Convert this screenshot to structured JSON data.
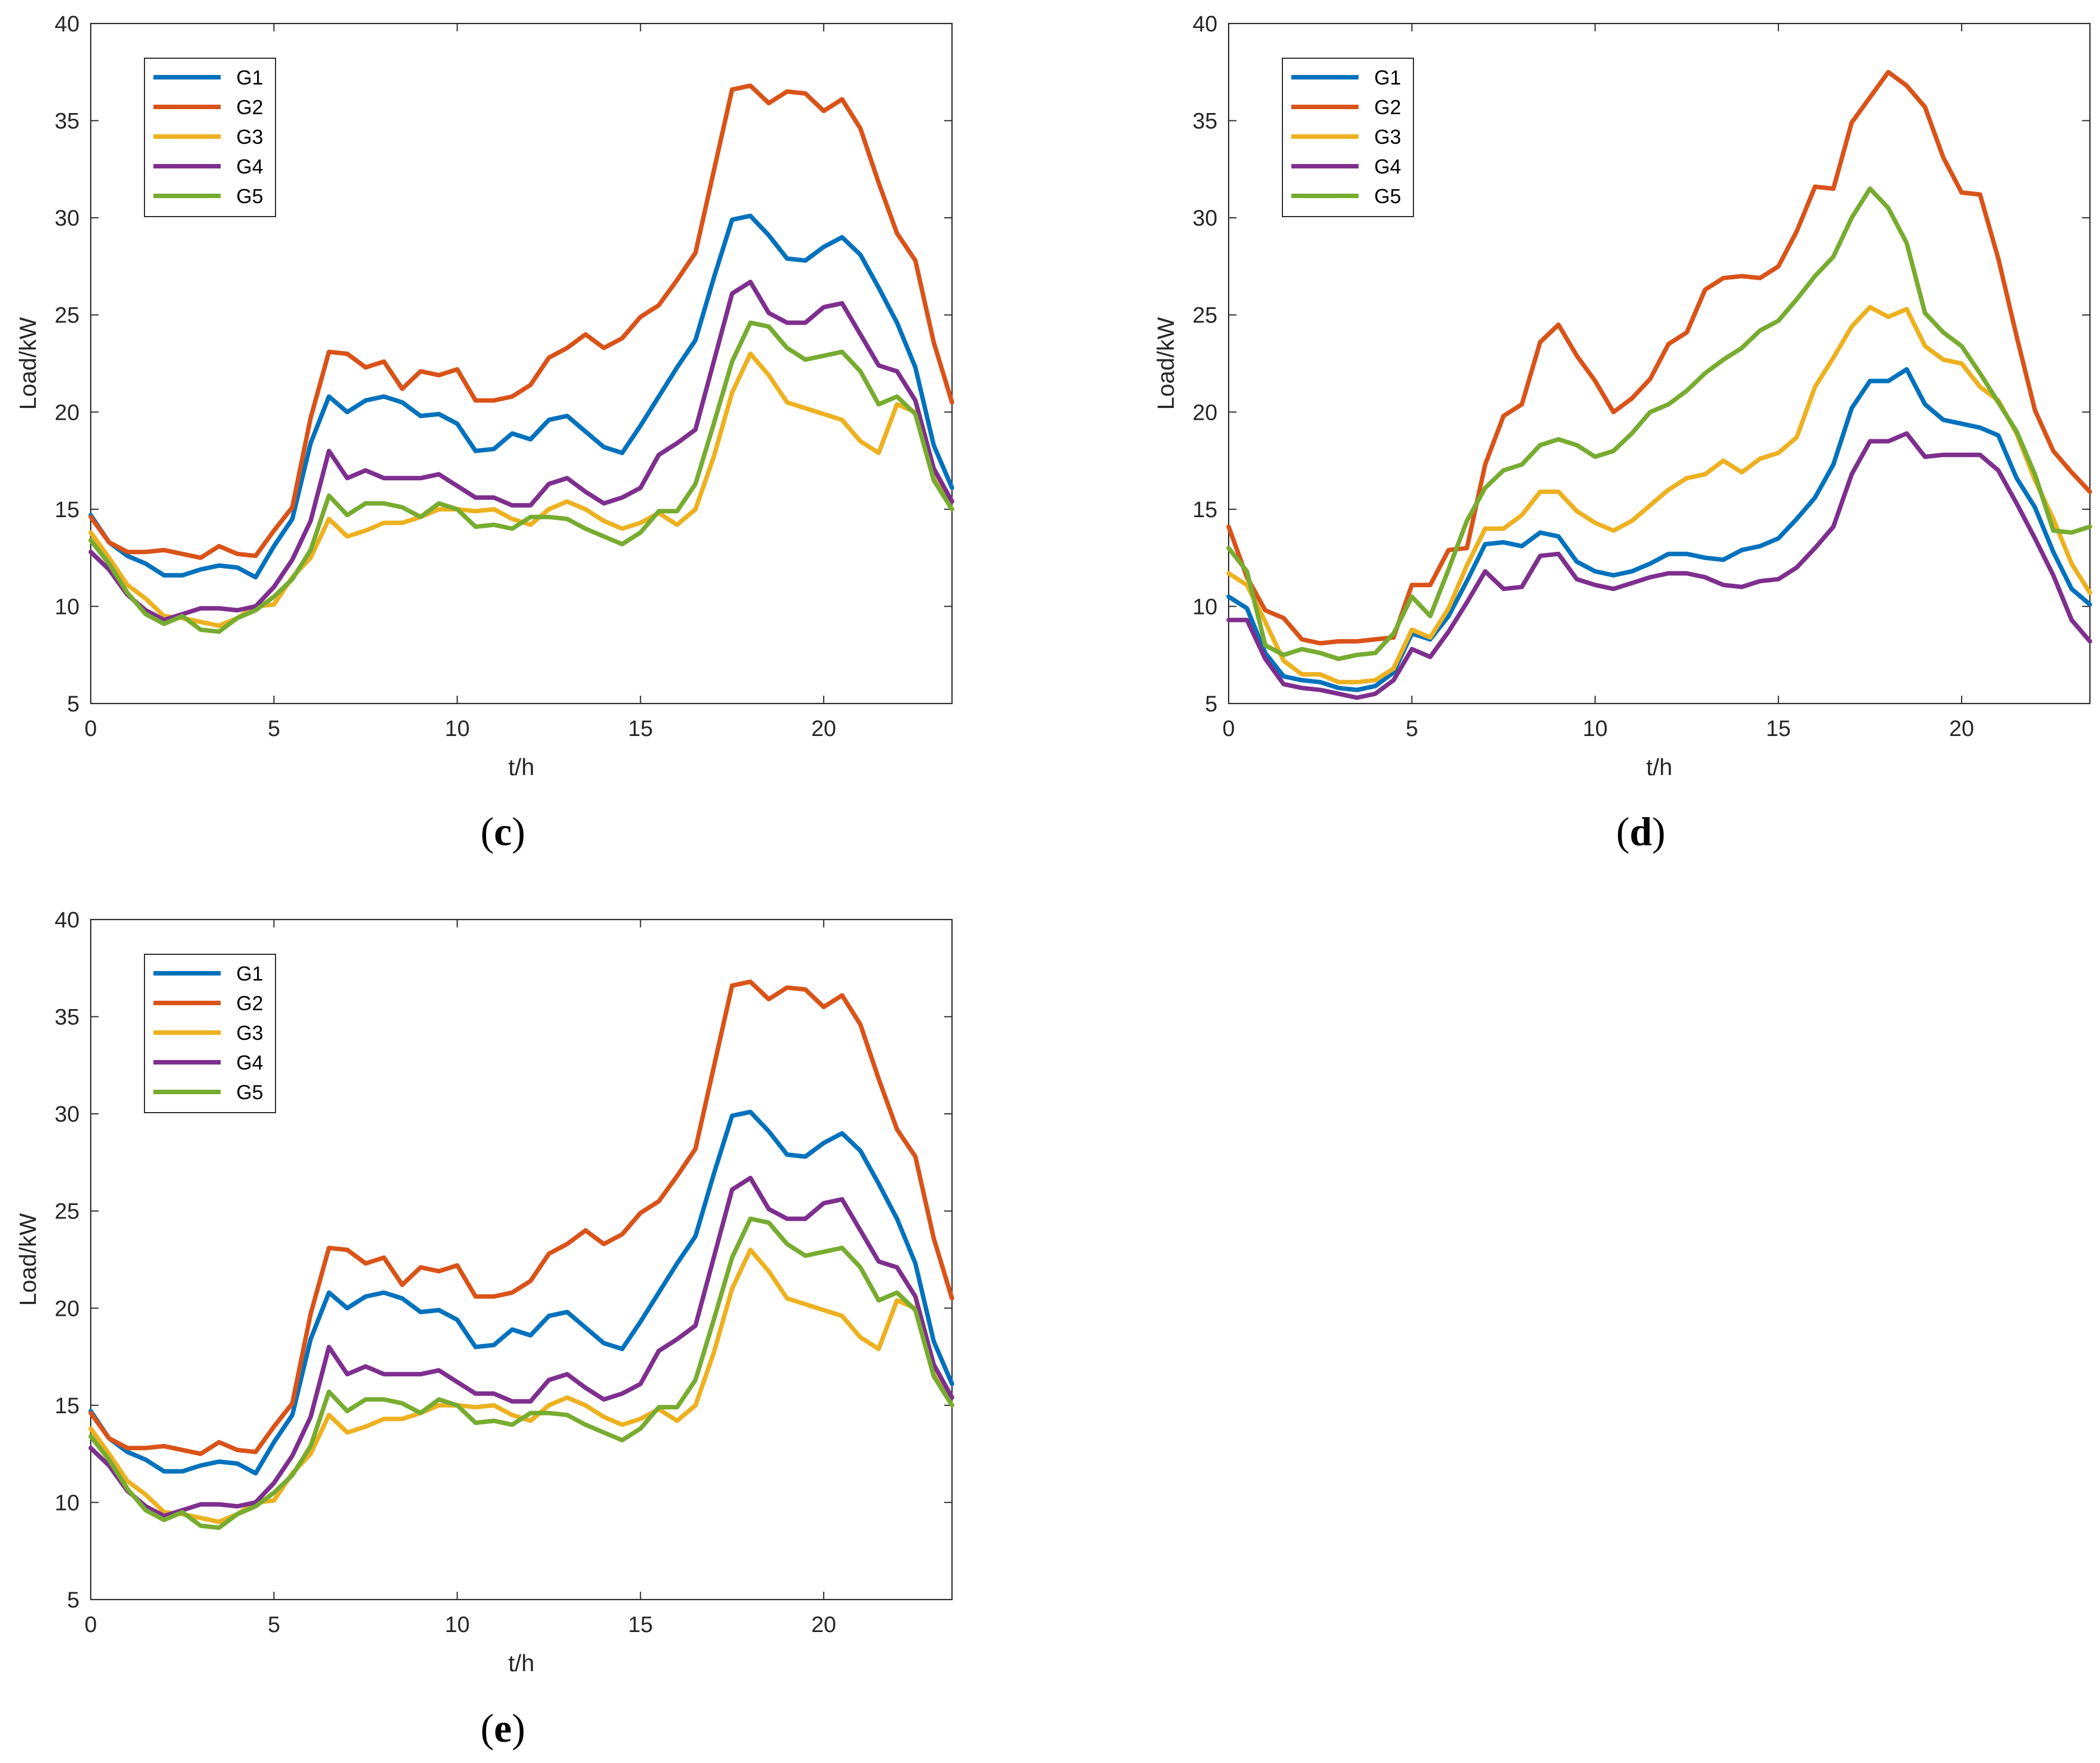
{
  "colors": {
    "G1": "#0072BD",
    "G2": "#D95319",
    "G3": "#EDB120",
    "G4": "#7E2F8E",
    "G5": "#77AC30",
    "axis": "#262626",
    "legend_border": "#262626"
  },
  "chart_data": [
    {
      "id": "c",
      "type": "line",
      "caption_letter": "c",
      "caption_open": "(",
      "caption_close": ")",
      "xlabel": "t/h",
      "ylabel": "Load/kW",
      "xlim": [
        0,
        23.5
      ],
      "ylim": [
        5,
        40
      ],
      "xticks": [
        "0",
        "5",
        "10",
        "15",
        "20"
      ],
      "yticks": [
        "5",
        "10",
        "15",
        "20",
        "25",
        "30",
        "35",
        "40"
      ],
      "grid": false,
      "legend": "top-left",
      "x": [
        0,
        0.5,
        1,
        1.5,
        2,
        2.5,
        3,
        3.5,
        4,
        4.5,
        5,
        5.5,
        6,
        6.5,
        7,
        7.5,
        8,
        8.5,
        9,
        9.5,
        10,
        10.5,
        11,
        11.5,
        12,
        12.5,
        13,
        13.5,
        14,
        14.5,
        15,
        15.5,
        16,
        16.5,
        17,
        17.5,
        18,
        18.5,
        19,
        19.5,
        20,
        20.5,
        21,
        21.5,
        22,
        22.5,
        23,
        23.5
      ],
      "series": [
        {
          "name": "G1",
          "values": [
            14.7,
            13.3,
            12.6,
            12.2,
            11.6,
            11.6,
            11.9,
            12.1,
            12.0,
            11.5,
            13.1,
            14.5,
            18.4,
            20.8,
            20.0,
            20.6,
            20.8,
            20.5,
            19.8,
            19.9,
            19.4,
            18.0,
            18.1,
            18.9,
            18.6,
            19.6,
            19.8,
            19.0,
            18.2,
            17.9,
            19.3,
            20.8,
            22.3,
            23.7,
            26.9,
            29.9,
            30.1,
            29.1,
            27.9,
            27.8,
            28.5,
            29.0,
            28.1,
            26.4,
            24.6,
            22.3,
            18.3,
            16.1
          ]
        },
        {
          "name": "G2",
          "values": [
            14.6,
            13.3,
            12.8,
            12.8,
            12.9,
            12.7,
            12.5,
            13.1,
            12.7,
            12.6,
            13.9,
            15.1,
            19.7,
            23.1,
            23.0,
            22.3,
            22.6,
            21.2,
            22.1,
            21.9,
            22.2,
            20.6,
            20.6,
            20.8,
            21.4,
            22.8,
            23.3,
            24.0,
            23.3,
            23.8,
            24.9,
            25.5,
            26.8,
            28.2,
            32.4,
            36.6,
            36.8,
            35.9,
            36.5,
            36.4,
            35.5,
            36.1,
            34.6,
            31.8,
            29.2,
            27.8,
            23.6,
            20.5
          ]
        },
        {
          "name": "G3",
          "values": [
            13.8,
            12.5,
            11.1,
            10.4,
            9.5,
            9.4,
            9.2,
            9.0,
            9.4,
            10.0,
            10.1,
            11.5,
            12.5,
            14.5,
            13.6,
            13.9,
            14.3,
            14.3,
            14.6,
            15.0,
            15.0,
            14.9,
            15.0,
            14.5,
            14.2,
            15.0,
            15.4,
            15.0,
            14.4,
            14.0,
            14.3,
            14.8,
            14.2,
            15.0,
            17.7,
            21.0,
            23.0,
            21.9,
            20.5,
            20.2,
            19.9,
            19.6,
            18.5,
            17.9,
            20.4,
            20.0,
            16.6,
            15.0
          ]
        },
        {
          "name": "G4",
          "values": [
            12.8,
            11.9,
            10.6,
            9.8,
            9.3,
            9.6,
            9.9,
            9.9,
            9.8,
            10.0,
            11.0,
            12.4,
            14.4,
            18.0,
            16.6,
            17.0,
            16.6,
            16.6,
            16.6,
            16.8,
            16.2,
            15.6,
            15.6,
            15.2,
            15.2,
            16.3,
            16.6,
            15.9,
            15.3,
            15.6,
            16.1,
            17.8,
            18.4,
            19.1,
            22.6,
            26.1,
            26.7,
            25.1,
            24.6,
            24.6,
            25.4,
            25.6,
            24.0,
            22.4,
            22.1,
            20.6,
            17.1,
            15.4
          ]
        },
        {
          "name": "G5",
          "values": [
            13.4,
            12.2,
            10.7,
            9.6,
            9.1,
            9.5,
            8.8,
            8.7,
            9.4,
            9.8,
            10.5,
            11.4,
            12.9,
            15.7,
            14.7,
            15.3,
            15.3,
            15.1,
            14.6,
            15.3,
            15.0,
            14.1,
            14.2,
            14.0,
            14.6,
            14.6,
            14.5,
            14.0,
            13.6,
            13.2,
            13.8,
            14.9,
            14.9,
            16.3,
            19.4,
            22.6,
            24.6,
            24.4,
            23.3,
            22.7,
            22.9,
            23.1,
            22.1,
            20.4,
            20.8,
            19.9,
            16.5,
            15.0
          ]
        }
      ]
    },
    {
      "id": "d",
      "type": "line",
      "caption_letter": "d",
      "caption_open": "(",
      "caption_close": ")",
      "xlabel": "t/h",
      "ylabel": "Load/kW",
      "xlim": [
        0,
        23.5
      ],
      "ylim": [
        5,
        40
      ],
      "xticks": [
        "0",
        "5",
        "10",
        "15",
        "20"
      ],
      "yticks": [
        "5",
        "10",
        "15",
        "20",
        "25",
        "30",
        "35",
        "40"
      ],
      "grid": false,
      "legend": "top-left",
      "x": [
        0,
        0.5,
        1,
        1.5,
        2,
        2.5,
        3,
        3.5,
        4,
        4.5,
        5,
        5.5,
        6,
        6.5,
        7,
        7.5,
        8,
        8.5,
        9,
        9.5,
        10,
        10.5,
        11,
        11.5,
        12,
        12.5,
        13,
        13.5,
        14,
        14.5,
        15,
        15.5,
        16,
        16.5,
        17,
        17.5,
        18,
        18.5,
        19,
        19.5,
        20,
        20.5,
        21,
        21.5,
        22,
        22.5,
        23,
        23.5
      ],
      "series": [
        {
          "name": "G1",
          "values": [
            10.5,
            9.9,
            7.6,
            6.4,
            6.2,
            6.1,
            5.8,
            5.7,
            5.9,
            6.6,
            8.6,
            8.3,
            9.5,
            11.3,
            13.2,
            13.3,
            13.1,
            13.8,
            13.6,
            12.3,
            11.8,
            11.6,
            11.8,
            12.2,
            12.7,
            12.7,
            12.5,
            12.4,
            12.9,
            13.1,
            13.5,
            14.5,
            15.6,
            17.3,
            20.2,
            21.6,
            21.6,
            22.2,
            20.4,
            19.6,
            19.4,
            19.2,
            18.8,
            16.6,
            15.1,
            12.8,
            10.9,
            10.1
          ]
        },
        {
          "name": "G2",
          "values": [
            14.1,
            11.5,
            9.8,
            9.4,
            8.3,
            8.1,
            8.2,
            8.2,
            8.3,
            8.4,
            11.1,
            11.1,
            12.9,
            13.0,
            17.3,
            19.8,
            20.4,
            23.6,
            24.5,
            22.9,
            21.6,
            20.0,
            20.7,
            21.7,
            23.5,
            24.1,
            26.3,
            26.9,
            27.0,
            26.9,
            27.5,
            29.3,
            31.6,
            31.5,
            34.9,
            36.2,
            37.5,
            36.8,
            35.7,
            33.1,
            31.3,
            31.2,
            27.9,
            23.9,
            20.1,
            18.0,
            16.9,
            15.9
          ]
        },
        {
          "name": "G3",
          "values": [
            11.7,
            11.1,
            9.2,
            7.2,
            6.5,
            6.5,
            6.1,
            6.1,
            6.2,
            6.8,
            8.8,
            8.4,
            9.9,
            12.1,
            14.0,
            14.0,
            14.7,
            15.9,
            15.9,
            14.9,
            14.3,
            13.9,
            14.4,
            15.2,
            16.0,
            16.6,
            16.8,
            17.5,
            16.9,
            17.6,
            17.9,
            18.7,
            21.3,
            22.8,
            24.4,
            25.4,
            24.9,
            25.3,
            23.4,
            22.7,
            22.5,
            21.3,
            20.6,
            18.9,
            16.5,
            14.5,
            12.2,
            10.7
          ]
        },
        {
          "name": "G4",
          "values": [
            9.3,
            9.3,
            7.3,
            6.0,
            5.8,
            5.7,
            5.5,
            5.3,
            5.5,
            6.2,
            7.8,
            7.4,
            8.7,
            10.2,
            11.8,
            10.9,
            11.0,
            12.6,
            12.7,
            11.4,
            11.1,
            10.9,
            11.2,
            11.5,
            11.7,
            11.7,
            11.5,
            11.1,
            11.0,
            11.3,
            11.4,
            12.0,
            13.0,
            14.1,
            16.8,
            18.5,
            18.5,
            18.9,
            17.7,
            17.8,
            17.8,
            17.8,
            17.0,
            15.3,
            13.5,
            11.6,
            9.3,
            8.2
          ]
        },
        {
          "name": "G5",
          "values": [
            13.0,
            11.8,
            8.0,
            7.5,
            7.8,
            7.6,
            7.3,
            7.5,
            7.6,
            8.6,
            10.5,
            9.5,
            11.9,
            14.4,
            16.1,
            17.0,
            17.3,
            18.3,
            18.6,
            18.3,
            17.7,
            18.0,
            18.9,
            20.0,
            20.4,
            21.1,
            22.0,
            22.7,
            23.3,
            24.2,
            24.7,
            25.8,
            27.0,
            28.0,
            30.0,
            31.5,
            30.5,
            28.7,
            25.1,
            24.1,
            23.4,
            22.0,
            20.5,
            19.0,
            16.8,
            13.9,
            13.8,
            14.1
          ]
        }
      ]
    },
    {
      "id": "e",
      "type": "line",
      "caption_letter": "e",
      "caption_open": "(",
      "caption_close": ")",
      "xlabel": "t/h",
      "ylabel": "Load/kW",
      "xlim": [
        0,
        23.5
      ],
      "ylim": [
        5,
        40
      ],
      "xticks": [
        "0",
        "5",
        "10",
        "15",
        "20"
      ],
      "yticks": [
        "5",
        "10",
        "15",
        "20",
        "25",
        "30",
        "35",
        "40"
      ],
      "grid": false,
      "legend": "top-left",
      "x": [
        0,
        0.5,
        1,
        1.5,
        2,
        2.5,
        3,
        3.5,
        4,
        4.5,
        5,
        5.5,
        6,
        6.5,
        7,
        7.5,
        8,
        8.5,
        9,
        9.5,
        10,
        10.5,
        11,
        11.5,
        12,
        12.5,
        13,
        13.5,
        14,
        14.5,
        15,
        15.5,
        16,
        16.5,
        17,
        17.5,
        18,
        18.5,
        19,
        19.5,
        20,
        20.5,
        21,
        21.5,
        22,
        22.5,
        23,
        23.5
      ],
      "series": [
        {
          "name": "G1",
          "values": [
            14.7,
            13.3,
            12.6,
            12.2,
            11.6,
            11.6,
            11.9,
            12.1,
            12.0,
            11.5,
            13.1,
            14.5,
            18.4,
            20.8,
            20.0,
            20.6,
            20.8,
            20.5,
            19.8,
            19.9,
            19.4,
            18.0,
            18.1,
            18.9,
            18.6,
            19.6,
            19.8,
            19.0,
            18.2,
            17.9,
            19.3,
            20.8,
            22.3,
            23.7,
            26.9,
            29.9,
            30.1,
            29.1,
            27.9,
            27.8,
            28.5,
            29.0,
            28.1,
            26.4,
            24.6,
            22.3,
            18.3,
            16.1
          ]
        },
        {
          "name": "G2",
          "values": [
            14.6,
            13.3,
            12.8,
            12.8,
            12.9,
            12.7,
            12.5,
            13.1,
            12.7,
            12.6,
            13.9,
            15.1,
            19.7,
            23.1,
            23.0,
            22.3,
            22.6,
            21.2,
            22.1,
            21.9,
            22.2,
            20.6,
            20.6,
            20.8,
            21.4,
            22.8,
            23.3,
            24.0,
            23.3,
            23.8,
            24.9,
            25.5,
            26.8,
            28.2,
            32.4,
            36.6,
            36.8,
            35.9,
            36.5,
            36.4,
            35.5,
            36.1,
            34.6,
            31.8,
            29.2,
            27.8,
            23.6,
            20.5
          ]
        },
        {
          "name": "G3",
          "values": [
            13.8,
            12.5,
            11.1,
            10.4,
            9.5,
            9.4,
            9.2,
            9.0,
            9.4,
            10.0,
            10.1,
            11.5,
            12.5,
            14.5,
            13.6,
            13.9,
            14.3,
            14.3,
            14.6,
            15.0,
            15.0,
            14.9,
            15.0,
            14.5,
            14.2,
            15.0,
            15.4,
            15.0,
            14.4,
            14.0,
            14.3,
            14.8,
            14.2,
            15.0,
            17.7,
            21.0,
            23.0,
            21.9,
            20.5,
            20.2,
            19.9,
            19.6,
            18.5,
            17.9,
            20.4,
            20.0,
            16.6,
            15.0
          ]
        },
        {
          "name": "G4",
          "values": [
            12.8,
            11.9,
            10.6,
            9.8,
            9.3,
            9.6,
            9.9,
            9.9,
            9.8,
            10.0,
            11.0,
            12.4,
            14.4,
            18.0,
            16.6,
            17.0,
            16.6,
            16.6,
            16.6,
            16.8,
            16.2,
            15.6,
            15.6,
            15.2,
            15.2,
            16.3,
            16.6,
            15.9,
            15.3,
            15.6,
            16.1,
            17.8,
            18.4,
            19.1,
            22.6,
            26.1,
            26.7,
            25.1,
            24.6,
            24.6,
            25.4,
            25.6,
            24.0,
            22.4,
            22.1,
            20.6,
            17.1,
            15.4
          ]
        },
        {
          "name": "G5",
          "values": [
            13.4,
            12.2,
            10.7,
            9.6,
            9.1,
            9.5,
            8.8,
            8.7,
            9.4,
            9.8,
            10.5,
            11.4,
            12.9,
            15.7,
            14.7,
            15.3,
            15.3,
            15.1,
            14.6,
            15.3,
            15.0,
            14.1,
            14.2,
            14.0,
            14.6,
            14.6,
            14.5,
            14.0,
            13.6,
            13.2,
            13.8,
            14.9,
            14.9,
            16.3,
            19.4,
            22.6,
            24.6,
            24.4,
            23.3,
            22.7,
            22.9,
            23.1,
            22.1,
            20.4,
            20.8,
            19.9,
            16.5,
            15.0
          ]
        }
      ]
    }
  ]
}
